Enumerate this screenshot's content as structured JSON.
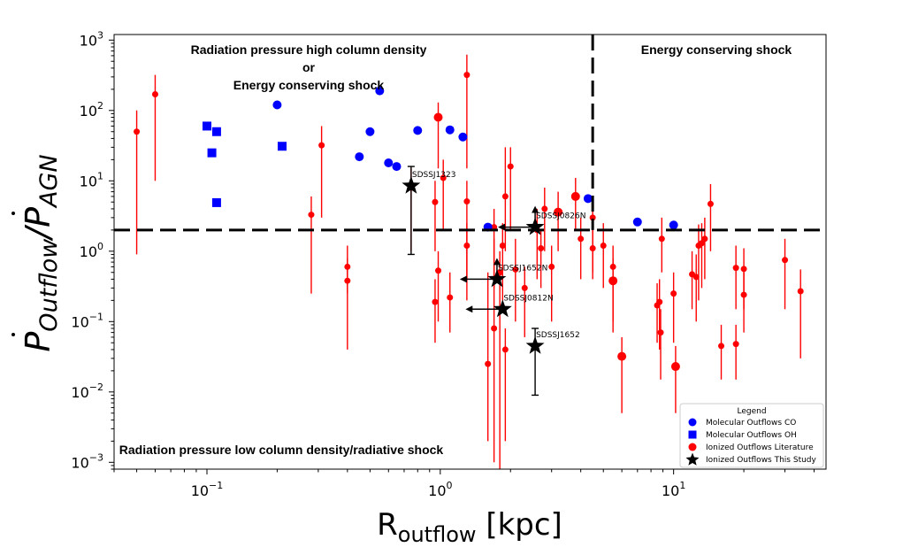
{
  "chart_data": {
    "type": "scatter",
    "xlabel_main": "R",
    "xlabel_sub": "outflow",
    "xlabel_unit": " [kpc]",
    "ylabel_main": "P",
    "ylabel_sub1": "Outflow",
    "ylabel_sep": "/P",
    "ylabel_sub2": "AGN",
    "xscale": "log",
    "yscale": "log",
    "xlim": [
      0.04,
      45
    ],
    "ylim": [
      0.0008,
      1200
    ],
    "x_ticks": [
      {
        "v": 0.1,
        "base": "10",
        "exp": "−1"
      },
      {
        "v": 1,
        "base": "10",
        "exp": "0"
      },
      {
        "v": 10,
        "base": "10",
        "exp": "1"
      }
    ],
    "y_ticks": [
      {
        "v": 0.001,
        "base": "10",
        "exp": "−3"
      },
      {
        "v": 0.01,
        "base": "10",
        "exp": "−2"
      },
      {
        "v": 0.1,
        "base": "10",
        "exp": "−1"
      },
      {
        "v": 1,
        "base": "10",
        "exp": "0"
      },
      {
        "v": 10,
        "base": "10",
        "exp": "1"
      },
      {
        "v": 100,
        "base": "10",
        "exp": "2"
      },
      {
        "v": 1000,
        "base": "10",
        "exp": "3"
      }
    ],
    "hline": 2.0,
    "vline": 4.5,
    "region_labels": {
      "top_left_line1": "Radiation pressure high column density",
      "top_left_line2": "or",
      "top_left_line3": "Energy conserving shock",
      "top_right": "Energy conserving shock",
      "bottom_left": "Radiation pressure low column density/radiative shock"
    },
    "legend": {
      "title": "Legend",
      "position": "lower right",
      "entries": [
        "Molecular Outflows CO",
        "Molecular Outflows OH",
        "Ionized Outflows Literature",
        "Ionized Outflows This Study"
      ]
    },
    "colors": {
      "molecular": "#0000ff",
      "ionized_lit": "#ff0000",
      "this_study": "#000000"
    },
    "series": [
      {
        "name": "Molecular Outflows CO",
        "marker": "circle",
        "points": [
          [
            0.2,
            120
          ],
          [
            0.55,
            190
          ],
          [
            0.5,
            50
          ],
          [
            0.45,
            22
          ],
          [
            0.6,
            18
          ],
          [
            0.65,
            16
          ],
          [
            0.8,
            52
          ],
          [
            1.1,
            53
          ],
          [
            1.25,
            42
          ],
          [
            1.6,
            2.2
          ],
          [
            4.3,
            5.6
          ],
          [
            7.0,
            2.6
          ],
          [
            10.0,
            2.35
          ]
        ]
      },
      {
        "name": "Molecular Outflows OH",
        "marker": "square",
        "points": [
          [
            0.1,
            60
          ],
          [
            0.11,
            50
          ],
          [
            0.105,
            25
          ],
          [
            0.21,
            31
          ],
          [
            0.11,
            4.9
          ]
        ]
      },
      {
        "name": "Ionized Outflows Literature",
        "marker": "circle",
        "points": [
          {
            "x": 0.05,
            "y": 50,
            "lo": 0.9,
            "hi": 100
          },
          {
            "x": 0.06,
            "y": 170,
            "lo": 10,
            "hi": 320
          },
          {
            "x": 0.28,
            "y": 3.3,
            "lo": 0.25,
            "hi": 6
          },
          {
            "x": 0.31,
            "y": 32,
            "lo": 3,
            "hi": 60
          },
          {
            "x": 0.4,
            "y": 0.6,
            "lo": 0.25,
            "hi": 1.2
          },
          {
            "x": 0.4,
            "y": 0.38,
            "lo": 0.04,
            "hi": 0.8
          },
          {
            "x": 0.75,
            "y": 8,
            "lo": 1,
            "hi": 15
          },
          {
            "x": 0.95,
            "y": 5,
            "lo": 1,
            "hi": 10
          },
          {
            "x": 0.95,
            "y": 0.19,
            "lo": 0.05,
            "hi": 0.4
          },
          {
            "x": 0.98,
            "y": 0.53,
            "lo": 0.1,
            "hi": 1.0
          },
          {
            "x": 0.98,
            "y": 80,
            "lo": 15,
            "hi": 130,
            "big": true
          },
          {
            "x": 1.03,
            "y": 11,
            "lo": 2,
            "hi": 20
          },
          {
            "x": 1.1,
            "y": 0.22,
            "lo": 0.07,
            "hi": 0.5
          },
          {
            "x": 1.3,
            "y": 320,
            "lo": 15,
            "hi": 620
          },
          {
            "x": 1.3,
            "y": 5.1,
            "lo": 0.4,
            "hi": 10
          },
          {
            "x": 1.3,
            "y": 1.2,
            "lo": 0.2,
            "hi": 2.5
          },
          {
            "x": 1.6,
            "y": 0.025,
            "lo": 0.002,
            "hi": 0.5
          },
          {
            "x": 1.7,
            "y": 0.08,
            "lo": 0.001,
            "hi": 1.5
          },
          {
            "x": 1.7,
            "y": 2.2,
            "lo": 0.3,
            "hi": 4
          },
          {
            "x": 1.8,
            "y": 0.5,
            "lo": 0.0007,
            "hi": 1.0
          },
          {
            "x": 1.85,
            "y": 1.2,
            "lo": 0.2,
            "hi": 2.5
          },
          {
            "x": 1.9,
            "y": 0.04,
            "lo": 0.002,
            "hi": 0.08
          },
          {
            "x": 1.9,
            "y": 6,
            "lo": 1,
            "hi": 30
          },
          {
            "x": 2.0,
            "y": 16,
            "lo": 2,
            "hi": 30
          },
          {
            "x": 2.1,
            "y": 0.55,
            "lo": 0.1,
            "hi": 1.5
          },
          {
            "x": 2.3,
            "y": 0.3,
            "lo": 0.06,
            "hi": 0.6
          },
          {
            "x": 2.6,
            "y": 2,
            "lo": 0.4,
            "hi": 4
          },
          {
            "x": 2.7,
            "y": 1.1,
            "lo": 0.3,
            "hi": 2
          },
          {
            "x": 2.8,
            "y": 4,
            "lo": 1,
            "hi": 8
          },
          {
            "x": 3.0,
            "y": 0.6,
            "lo": 0.1,
            "hi": 1.2
          },
          {
            "x": 3.2,
            "y": 3.6,
            "lo": 1,
            "hi": 7,
            "big": true
          },
          {
            "x": 3.8,
            "y": 6,
            "lo": 2,
            "hi": 11,
            "big": true
          },
          {
            "x": 4.0,
            "y": 1.5,
            "lo": 0.4,
            "hi": 3
          },
          {
            "x": 4.5,
            "y": 3,
            "lo": 0.5,
            "hi": 6
          },
          {
            "x": 4.5,
            "y": 1.1,
            "lo": 0.4,
            "hi": 2
          },
          {
            "x": 5.0,
            "y": 1.2,
            "lo": 0.3,
            "hi": 2.5
          },
          {
            "x": 5.5,
            "y": 0.38,
            "lo": 0.07,
            "hi": 0.8,
            "big": true
          },
          {
            "x": 5.5,
            "y": 0.6,
            "lo": 0.1,
            "hi": 1.2
          },
          {
            "x": 6.0,
            "y": 0.032,
            "lo": 0.005,
            "hi": 0.06,
            "big": true
          },
          {
            "x": 8.5,
            "y": 0.17,
            "lo": 0.05,
            "hi": 0.35
          },
          {
            "x": 8.7,
            "y": 0.19,
            "lo": 0.04,
            "hi": 0.4
          },
          {
            "x": 8.8,
            "y": 0.07,
            "lo": 0.015,
            "hi": 0.15
          },
          {
            "x": 8.9,
            "y": 1.5,
            "lo": 0.5,
            "hi": 3
          },
          {
            "x": 10.0,
            "y": 0.25,
            "lo": 0.05,
            "hi": 0.5
          },
          {
            "x": 10.2,
            "y": 0.023,
            "lo": 0.005,
            "hi": 0.045,
            "big": true
          },
          {
            "x": 12.0,
            "y": 0.47,
            "lo": 0.15,
            "hi": 1
          },
          {
            "x": 12.5,
            "y": 0.43,
            "lo": 0.1,
            "hi": 0.9
          },
          {
            "x": 12.8,
            "y": 1.2,
            "lo": 0.2,
            "hi": 2.4
          },
          {
            "x": 13.2,
            "y": 1.3,
            "lo": 0.3,
            "hi": 2.5
          },
          {
            "x": 13.6,
            "y": 1.5,
            "lo": 0.4,
            "hi": 3
          },
          {
            "x": 14.4,
            "y": 4.7,
            "lo": 1,
            "hi": 9
          },
          {
            "x": 16.0,
            "y": 0.045,
            "lo": 0.015,
            "hi": 0.09
          },
          {
            "x": 18.5,
            "y": 0.58,
            "lo": 0.15,
            "hi": 1.2
          },
          {
            "x": 18.5,
            "y": 0.048,
            "lo": 0.015,
            "hi": 0.09
          },
          {
            "x": 20.0,
            "y": 0.56,
            "lo": 0.15,
            "hi": 1.1
          },
          {
            "x": 20.0,
            "y": 0.24,
            "lo": 0.07,
            "hi": 0.5
          },
          {
            "x": 30.0,
            "y": 0.75,
            "lo": 0.15,
            "hi": 1.5
          },
          {
            "x": 35.0,
            "y": 0.27,
            "lo": 0.03,
            "hi": 0.55
          }
        ]
      },
      {
        "name": "Ionized Outflows This Study",
        "marker": "star",
        "points": [
          {
            "x": 0.75,
            "y": 8.5,
            "lo": 0.9,
            "hi": 16,
            "label": "SDSSJ1323",
            "arrows": []
          },
          {
            "x": 2.55,
            "y": 2.2,
            "label": "SDSSJ0826N",
            "arrows": [
              "left",
              "up"
            ]
          },
          {
            "x": 1.75,
            "y": 0.4,
            "label": "SDSSJ1652N",
            "arrows": [
              "left",
              "up"
            ]
          },
          {
            "x": 1.85,
            "y": 0.15,
            "label": "SDSSJ0812N",
            "arrows": [
              "left"
            ]
          },
          {
            "x": 2.55,
            "y": 0.045,
            "lo": 0.009,
            "hi": 0.08,
            "label": "SDSSJ1652",
            "arrows": []
          }
        ]
      }
    ]
  }
}
